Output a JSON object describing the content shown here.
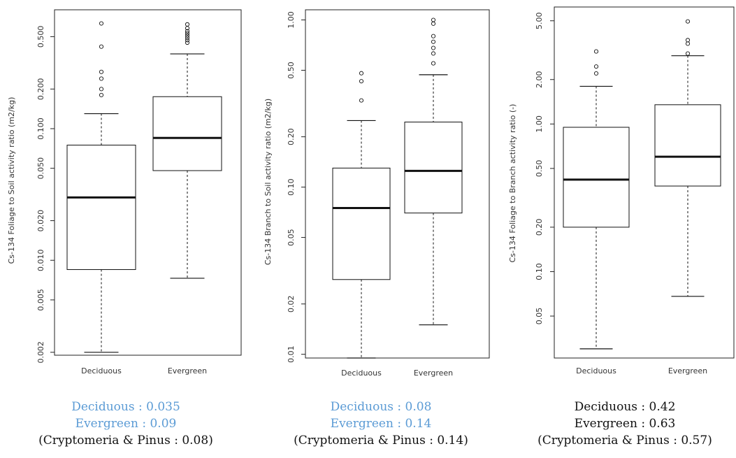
{
  "colors": {
    "caption_blue": "#5b9bd5",
    "caption_black": "#111111",
    "box_stroke": "#111111"
  },
  "chart_data": [
    {
      "type": "box",
      "ylabel": "Cs-134 Foliage to Soil activity ratio (m2/kg)",
      "yscale": "log",
      "ylim": [
        0.0019,
        0.8
      ],
      "yticks": [
        0.002,
        0.005,
        0.01,
        0.02,
        0.05,
        0.1,
        0.2,
        0.5
      ],
      "ytick_labels": [
        "0.002",
        "0.005",
        "0.010",
        "0.020",
        "0.050",
        "0.100",
        "0.200",
        "0.500"
      ],
      "categories": [
        "Deciduous",
        "Evergreen"
      ],
      "boxes": [
        {
          "name": "Deciduous",
          "whisker_low": 0.002,
          "q1": 0.0085,
          "median": 0.03,
          "q3": 0.075,
          "whisker_high": 0.13,
          "outliers": [
            0.18,
            0.2,
            0.24,
            0.27,
            0.42,
            0.63
          ]
        },
        {
          "name": "Evergreen",
          "whisker_low": 0.0073,
          "q1": 0.048,
          "median": 0.085,
          "q3": 0.175,
          "whisker_high": 0.37,
          "outliers": [
            0.45,
            0.47,
            0.49,
            0.51,
            0.53,
            0.55,
            0.58,
            0.62
          ]
        }
      ],
      "caption": [
        "Deciduous : 0.035",
        "Evergreen : 0.09",
        "(Cryptomeria & Pinus : 0.08)"
      ],
      "caption_colors": [
        "blue",
        "blue",
        "black"
      ]
    },
    {
      "type": "box",
      "ylabel": "Cs-134 Branch to Soil activity ratio (m2/kg)",
      "yscale": "log",
      "ylim": [
        0.0095,
        1.15
      ],
      "yticks": [
        0.01,
        0.02,
        0.05,
        0.1,
        0.2,
        0.5,
        1.0
      ],
      "ytick_labels": [
        "0.01",
        "0.02",
        "0.05",
        "0.10",
        "0.20",
        "0.50",
        "1.00"
      ],
      "categories": [
        "Deciduous",
        "Evergreen"
      ],
      "boxes": [
        {
          "name": "Deciduous",
          "whisker_low": 0.0095,
          "q1": 0.028,
          "median": 0.075,
          "q3": 0.13,
          "whisker_high": 0.25,
          "outliers": [
            0.33,
            0.43,
            0.48
          ]
        },
        {
          "name": "Evergreen",
          "whisker_low": 0.015,
          "q1": 0.07,
          "median": 0.125,
          "q3": 0.245,
          "whisker_high": 0.47,
          "outliers": [
            0.55,
            0.63,
            0.68,
            0.74,
            0.8,
            0.95,
            1.0
          ]
        }
      ],
      "caption": [
        "Deciduous : 0.08",
        "Evergreen : 0.14",
        "(Cryptomeria & Pinus : 0.14)"
      ],
      "caption_colors": [
        "blue",
        "blue",
        "black"
      ]
    },
    {
      "type": "box",
      "ylabel": "Cs-134 Foliage to Branch activity ratio (-)",
      "yscale": "log",
      "ylim": [
        0.026,
        6.2
      ],
      "yticks": [
        0.05,
        0.1,
        0.2,
        0.5,
        1.0,
        2.0,
        5.0
      ],
      "ytick_labels": [
        "0.05",
        "0.10",
        "0.20",
        "0.50",
        "1.00",
        "2.00",
        "5.00"
      ],
      "categories": [
        "Deciduous",
        "Evergreen"
      ],
      "boxes": [
        {
          "name": "Deciduous",
          "whisker_low": 0.03,
          "q1": 0.2,
          "median": 0.42,
          "q3": 0.95,
          "whisker_high": 1.8,
          "outliers": [
            2.2,
            2.45,
            3.1
          ]
        },
        {
          "name": "Evergreen",
          "whisker_low": 0.068,
          "q1": 0.38,
          "median": 0.6,
          "q3": 1.35,
          "whisker_high": 2.9,
          "outliers": [
            3.0,
            3.5,
            3.7,
            4.95
          ]
        }
      ],
      "caption": [
        "Deciduous : 0.42",
        "Evergreen : 0.63",
        "(Cryptomeria & Pinus : 0.57)"
      ],
      "caption_colors": [
        "black",
        "black",
        "black"
      ]
    }
  ]
}
